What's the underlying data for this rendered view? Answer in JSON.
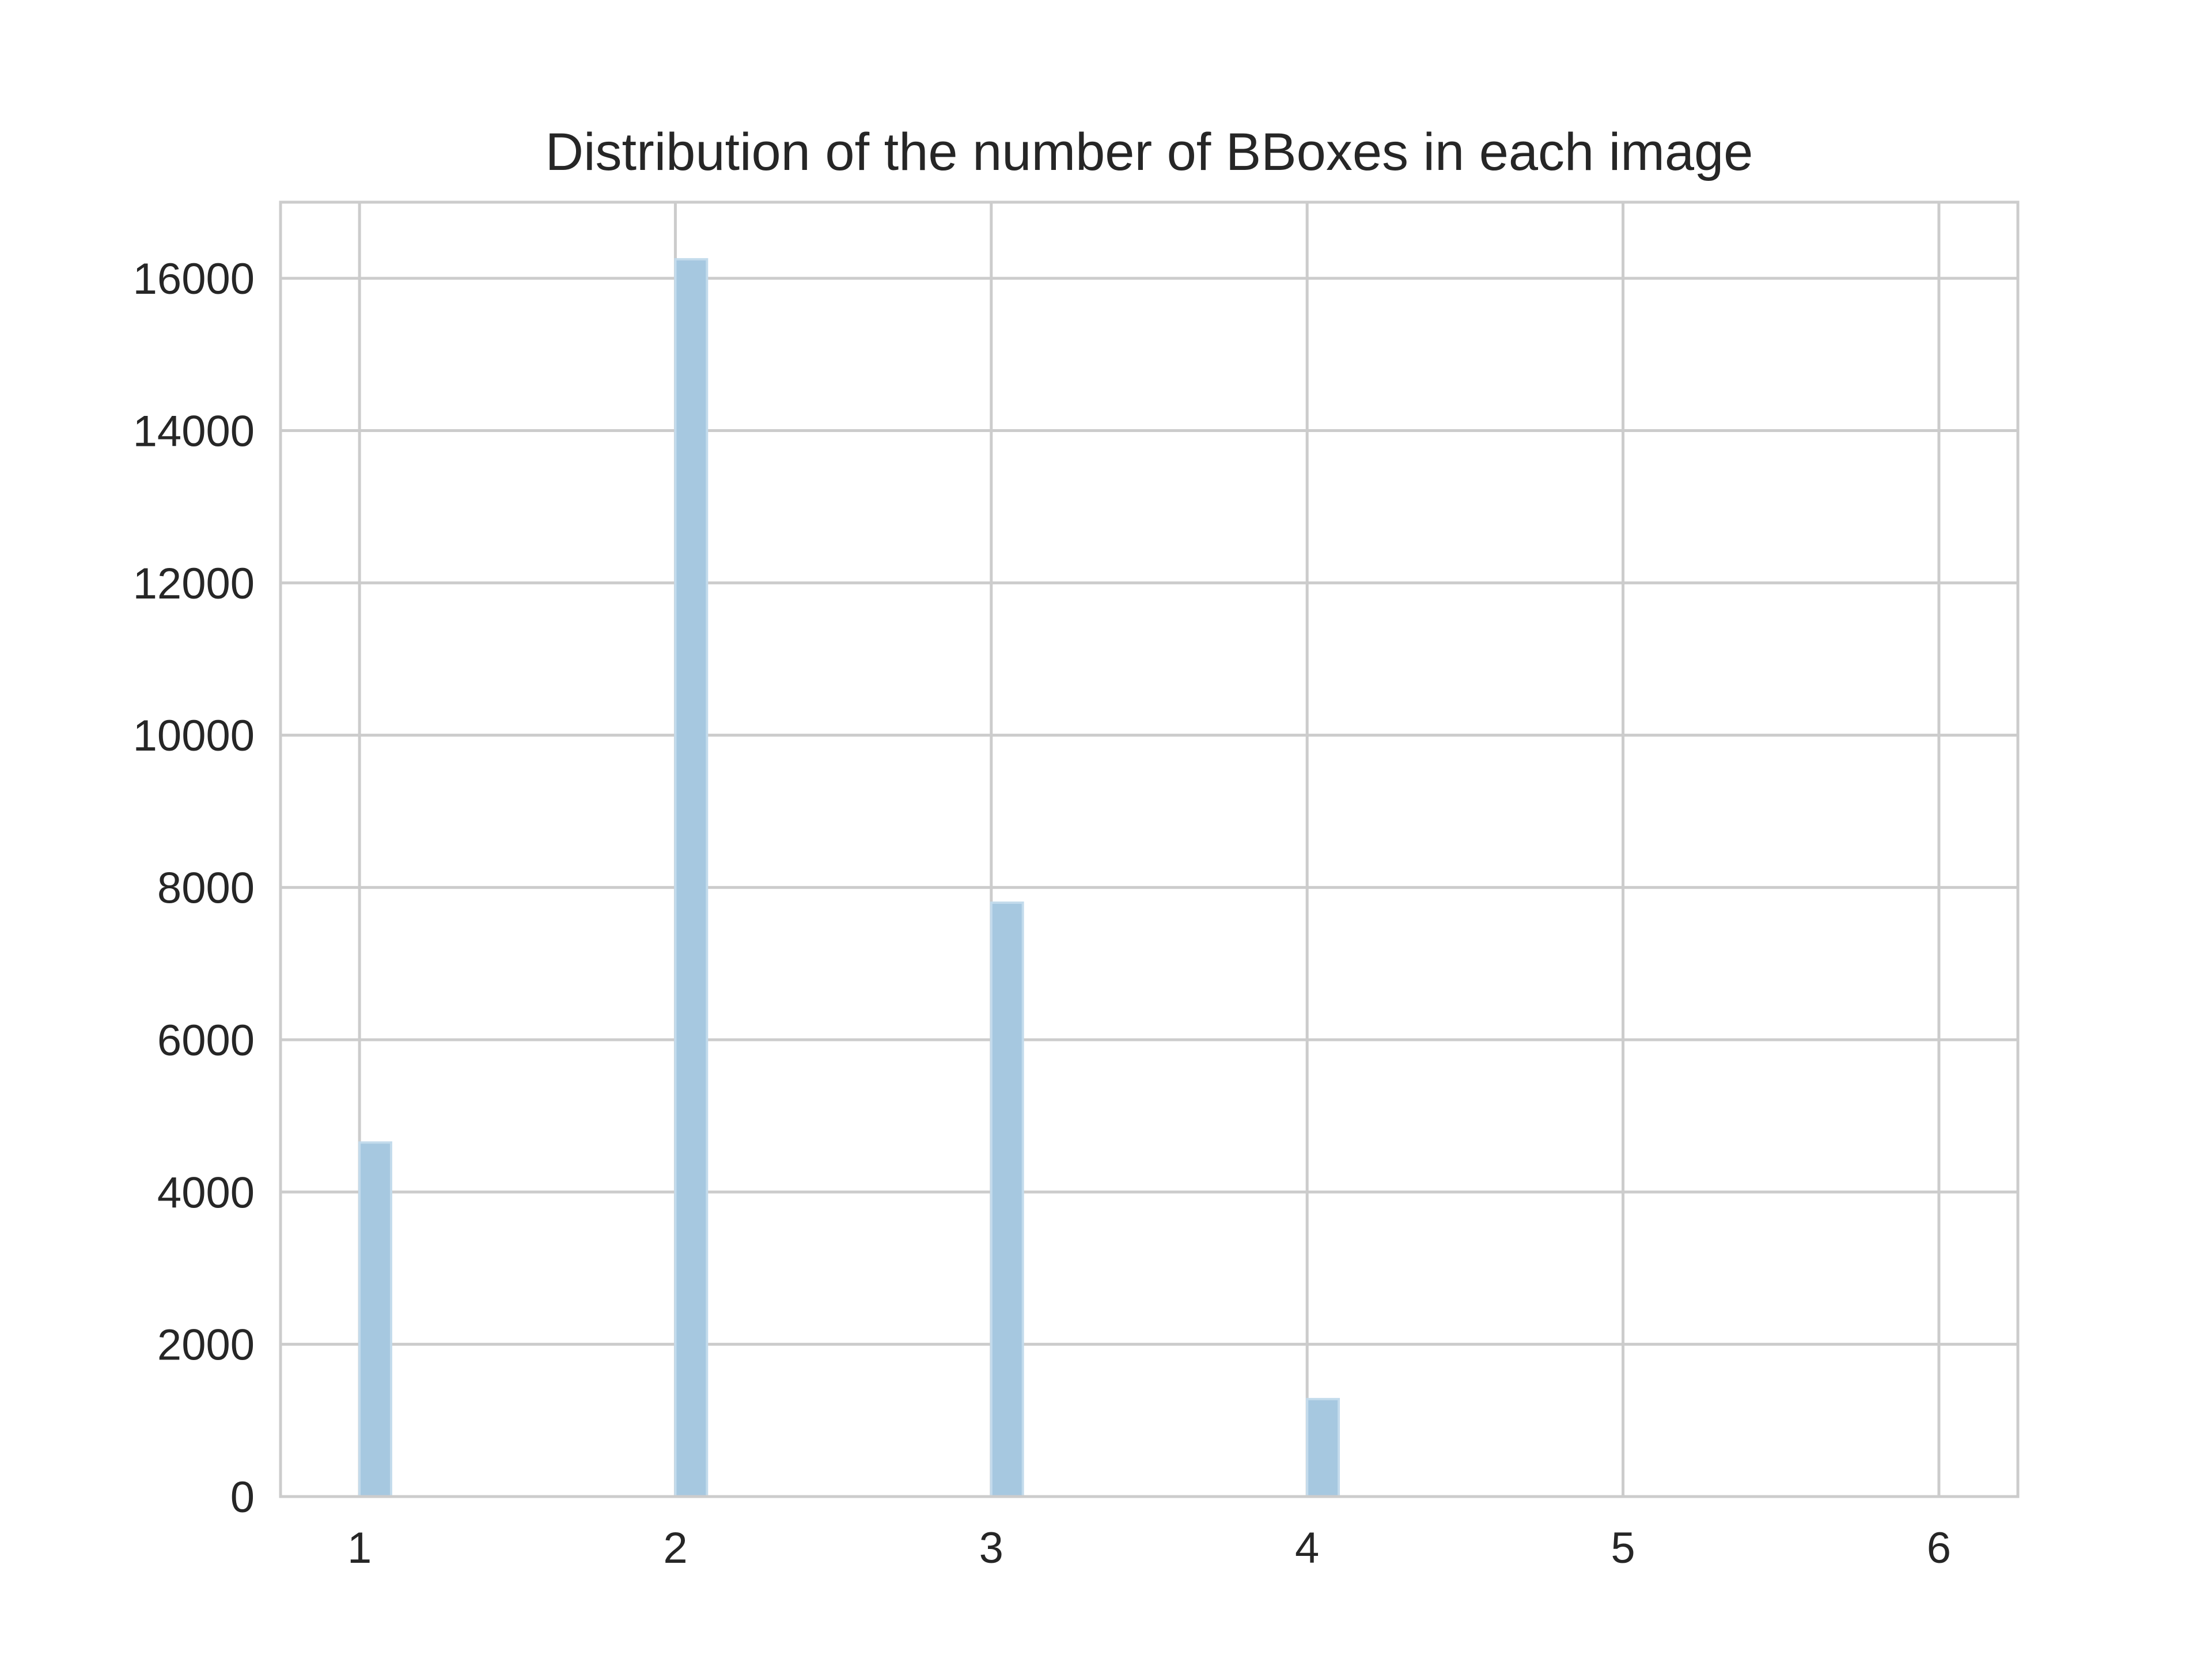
{
  "chart_data": {
    "type": "bar",
    "title": "Distribution of the number of BBoxes in each image",
    "xlabel": "",
    "ylabel": "",
    "xlim": [
      0.75,
      6.25
    ],
    "ylim": [
      0,
      17000
    ],
    "grid": true,
    "x_ticks": [
      1,
      2,
      3,
      4,
      5,
      6
    ],
    "y_ticks": [
      0,
      2000,
      4000,
      6000,
      8000,
      10000,
      12000,
      14000,
      16000
    ],
    "bin_width": 0.1,
    "bars": [
      {
        "x": 1,
        "value": 4650
      },
      {
        "x": 2,
        "value": 16250
      },
      {
        "x": 3,
        "value": 7800
      },
      {
        "x": 4,
        "value": 1280
      }
    ],
    "bar_color": "#a6c8e0"
  }
}
